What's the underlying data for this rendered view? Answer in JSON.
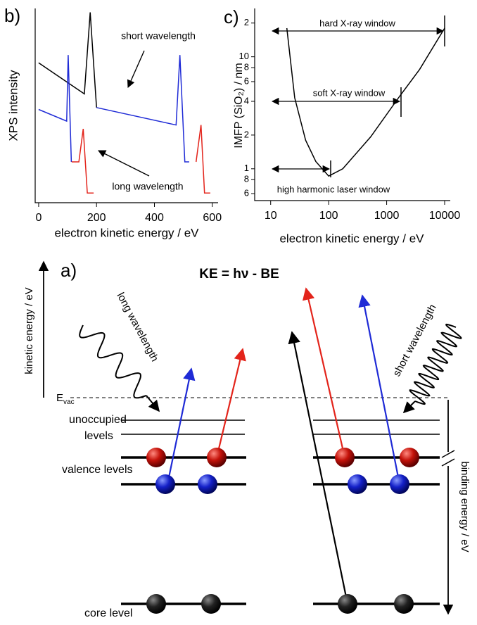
{
  "chart_data": [
    {
      "type": "line",
      "label": "b)",
      "ylabel": "XPS intensity",
      "xlabel": "electron kinetic energy / eV",
      "xlim": [
        -12,
        620
      ],
      "xticks": [
        0,
        200,
        400,
        600
      ],
      "ylim": [
        0,
        100
      ],
      "annotations": [
        "short wavelength",
        "long wavelength"
      ],
      "series": [
        {
          "color": "#000000",
          "x": [
            0,
            158,
            178,
            200
          ],
          "values": [
            72,
            56,
            98,
            49
          ]
        },
        {
          "color": "#1f2bd6",
          "x": [
            0,
            97,
            102,
            113,
            null,
            200,
            475,
            488,
            505,
            520
          ],
          "values": [
            48,
            42,
            76,
            21,
            null,
            49,
            40,
            76,
            21,
            21
          ]
        },
        {
          "color": "#e3241b",
          "x": [
            114,
            139,
            154,
            168,
            190,
            null,
            544,
            561,
            573,
            593
          ],
          "values": [
            21,
            21,
            38,
            5,
            5,
            null,
            21,
            40,
            5,
            5
          ]
        }
      ]
    },
    {
      "type": "line",
      "label": "c)",
      "xlog": true,
      "ylog": true,
      "ylabel": "IMFP (SiO₂) / nm",
      "xlabel": "electron kinetic energy / eV",
      "xlim": [
        5.3,
        12500
      ],
      "ylim": [
        0.52,
        27
      ],
      "xticks": [
        10,
        100,
        1000,
        10000
      ],
      "yticks": [
        {
          "value": 20,
          "label": "2"
        },
        10,
        8,
        6,
        4,
        2,
        1,
        {
          "value": 0.8,
          "label": "8"
        },
        {
          "value": 0.6,
          "label": "6"
        }
      ],
      "annotations": [
        "hard X-ray window",
        "soft X-ray window",
        "high harmonic laser window"
      ],
      "series": [
        {
          "color": "#000000",
          "x": [
            19,
            26,
            40,
            60,
            100,
            175,
            530,
            1600,
            3700,
            10000
          ],
          "values": [
            18,
            4.3,
            1.8,
            1.16,
            0.86,
            1.0,
            1.93,
            4.3,
            7.7,
            18
          ]
        }
      ]
    }
  ],
  "diagram": {
    "label": "a)",
    "equation": "KE = hν - BE",
    "kinetic_axis": "kinetic energy / eV",
    "binding_axis": "binding energy / eV",
    "long": "long wavelength",
    "short": "short wavelength",
    "evac": "E",
    "evac_sub": "vac",
    "unoccupied_1": "unoccupied",
    "unoccupied_2": "levels",
    "valence": "valence levels",
    "core": "core level"
  }
}
